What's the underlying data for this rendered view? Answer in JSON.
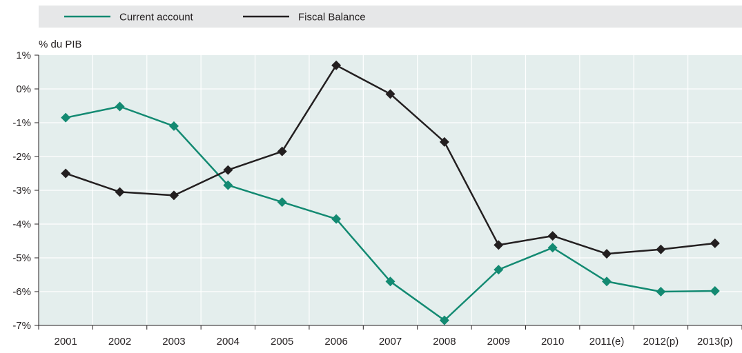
{
  "chart_data": {
    "type": "line",
    "ylabel": "% du PIB",
    "categories": [
      "2001",
      "2002",
      "2003",
      "2004",
      "2005",
      "2006",
      "2007",
      "2008",
      "2009",
      "2010",
      "2011(e)",
      "2012(p)",
      "2013(p)"
    ],
    "yticks": [
      "1%",
      "0%",
      "-1%",
      "-2%",
      "-3%",
      "-4%",
      "-5%",
      "-6%",
      "-7%"
    ],
    "ylim": [
      -7,
      1
    ],
    "grid": true,
    "legend_position": "top",
    "series": [
      {
        "name": "Current account",
        "color": "#138a72",
        "values": [
          -0.85,
          -0.52,
          -1.1,
          -2.85,
          -3.35,
          -3.85,
          -5.7,
          -6.85,
          -5.35,
          -4.7,
          -5.7,
          -6.0,
          -5.98
        ]
      },
      {
        "name": "Fiscal Balance",
        "color": "#231f20",
        "values": [
          -2.5,
          -3.05,
          -3.15,
          -2.4,
          -1.85,
          0.7,
          -0.15,
          -1.57,
          -4.62,
          -4.35,
          -4.88,
          -4.75,
          -4.57
        ]
      }
    ]
  }
}
